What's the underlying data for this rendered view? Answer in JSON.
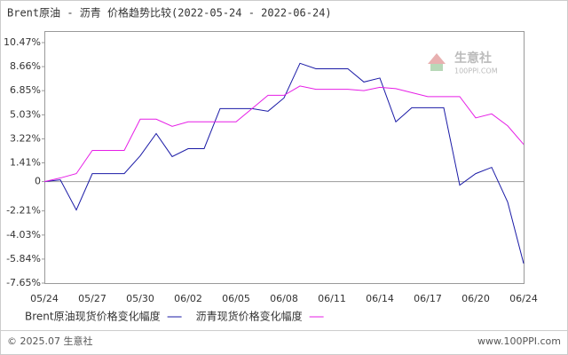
{
  "chart_data": {
    "type": "line",
    "title": "Brent原油 - 沥青 价格趋势比较(2022-05-24 - 2022-06-24)",
    "categories": [
      "05/24",
      null,
      null,
      "05/27",
      null,
      null,
      "05/30",
      null,
      null,
      "06/02",
      null,
      null,
      "06/05",
      null,
      null,
      "06/08",
      null,
      null,
      "06/11",
      null,
      null,
      "06/14",
      null,
      null,
      "06/17",
      null,
      null,
      "06/20",
      null,
      null,
      "06/24"
    ],
    "series": [
      {
        "name": "Brent原油现货价格变化幅度",
        "color": "#1a1aa6",
        "values": [
          0,
          0.13,
          -2.14,
          0.6,
          0.6,
          0.6,
          1.94,
          3.62,
          1.88,
          2.48,
          2.48,
          5.5,
          5.5,
          5.5,
          5.3,
          6.3,
          8.91,
          8.5,
          8.5,
          8.5,
          7.5,
          7.8,
          4.5,
          5.56,
          5.56,
          5.56,
          -0.27,
          0.6,
          1.07,
          -1.54,
          -6.17
        ]
      },
      {
        "name": "沥青现货价格变化幅度",
        "color": "#e61ee6",
        "values": [
          0,
          0.27,
          0.6,
          2.35,
          2.35,
          2.35,
          4.7,
          4.7,
          4.16,
          4.5,
          4.5,
          4.5,
          4.5,
          5.5,
          6.5,
          6.5,
          7.2,
          6.95,
          6.95,
          6.95,
          6.85,
          7.1,
          7.0,
          6.7,
          6.4,
          6.4,
          6.4,
          4.8,
          5.1,
          4.2,
          2.8
        ]
      }
    ],
    "ylim": [
      -7.65,
      10.47
    ],
    "yticks": [
      {
        "value": 10.47,
        "label": "10.47%"
      },
      {
        "value": 8.66,
        "label": "8.66%"
      },
      {
        "value": 6.85,
        "label": "6.85%"
      },
      {
        "value": 5.03,
        "label": "5.03%"
      },
      {
        "value": 3.22,
        "label": "3.22%"
      },
      {
        "value": 1.41,
        "label": "1.41%"
      },
      0,
      {
        "value": -2.21,
        "label": "-2.21%"
      },
      {
        "value": -4.03,
        "label": "-4.03%"
      },
      {
        "value": -5.84,
        "label": "-5.84%"
      },
      {
        "value": -7.65,
        "label": "-7.65%"
      }
    ],
    "zero_line": true,
    "grid": false,
    "legend": "bottom",
    "watermark": {
      "name": "生意社",
      "site": "100PPI.COM"
    },
    "footer": {
      "left": "© 2025.07 生意社",
      "right": "www.100PPI.com"
    }
  }
}
